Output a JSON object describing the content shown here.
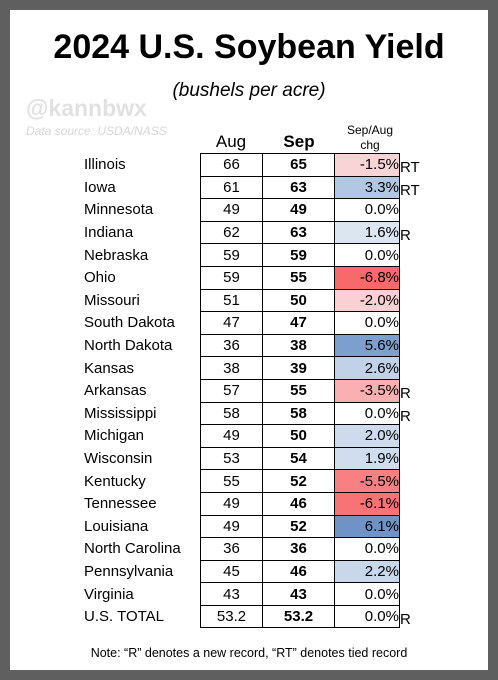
{
  "title": "2024 U.S. Soybean Yield",
  "subtitle": "(bushels per acre)",
  "handle": "@kannbwx",
  "source": "Data source: USDA/NASS",
  "headers": {
    "aug": "Aug",
    "sep": "Sep",
    "chg_line1": "Sep/Aug",
    "chg_line2": "chg"
  },
  "rows": [
    {
      "state": "Illinois",
      "aug": "66",
      "sep": "65",
      "chg": "-1.5%",
      "rec": "RT",
      "color": "#f9d4d6"
    },
    {
      "state": "Iowa",
      "aug": "61",
      "sep": "63",
      "chg": "3.3%",
      "rec": "RT",
      "color": "#b2c7e1"
    },
    {
      "state": "Minnesota",
      "aug": "49",
      "sep": "49",
      "chg": "0.0%",
      "rec": "",
      "color": "#ffffff"
    },
    {
      "state": "Indiana",
      "aug": "62",
      "sep": "63",
      "chg": "1.6%",
      "rec": "R",
      "color": "#dce6f1"
    },
    {
      "state": "Nebraska",
      "aug": "59",
      "sep": "59",
      "chg": "0.0%",
      "rec": "",
      "color": "#ffffff"
    },
    {
      "state": "Ohio",
      "aug": "59",
      "sep": "55",
      "chg": "-6.8%",
      "rec": "",
      "color": "#f8696b"
    },
    {
      "state": "Missouri",
      "aug": "51",
      "sep": "50",
      "chg": "-2.0%",
      "rec": "",
      "color": "#fbd0d2"
    },
    {
      "state": "South Dakota",
      "aug": "47",
      "sep": "47",
      "chg": "0.0%",
      "rec": "",
      "color": "#ffffff"
    },
    {
      "state": "North Dakota",
      "aug": "36",
      "sep": "38",
      "chg": "5.6%",
      "rec": "",
      "color": "#7d9fcd"
    },
    {
      "state": "Kansas",
      "aug": "38",
      "sep": "39",
      "chg": "2.6%",
      "rec": "",
      "color": "#c1d2e8"
    },
    {
      "state": "Arkansas",
      "aug": "57",
      "sep": "55",
      "chg": "-3.5%",
      "rec": "R",
      "color": "#fab0b2"
    },
    {
      "state": "Mississippi",
      "aug": "58",
      "sep": "58",
      "chg": "0.0%",
      "rec": "R",
      "color": "#ffffff"
    },
    {
      "state": "Michigan",
      "aug": "49",
      "sep": "50",
      "chg": "2.0%",
      "rec": "",
      "color": "#cddbec"
    },
    {
      "state": "Wisconsin",
      "aug": "53",
      "sep": "54",
      "chg": "1.9%",
      "rec": "",
      "color": "#d0ddee"
    },
    {
      "state": "Kentucky",
      "aug": "55",
      "sep": "52",
      "chg": "-5.5%",
      "rec": "",
      "color": "#f88082"
    },
    {
      "state": "Tennessee",
      "aug": "49",
      "sep": "46",
      "chg": "-6.1%",
      "rec": "",
      "color": "#f87375"
    },
    {
      "state": "Louisiana",
      "aug": "49",
      "sep": "52",
      "chg": "6.1%",
      "rec": "",
      "color": "#6f93c6"
    },
    {
      "state": "North Carolina",
      "aug": "36",
      "sep": "36",
      "chg": "0.0%",
      "rec": "",
      "color": "#ffffff"
    },
    {
      "state": "Pennsylvania",
      "aug": "45",
      "sep": "46",
      "chg": "2.2%",
      "rec": "",
      "color": "#c8d7ea"
    },
    {
      "state": "Virginia",
      "aug": "43",
      "sep": "43",
      "chg": "0.0%",
      "rec": "",
      "color": "#ffffff"
    },
    {
      "state": "U.S. TOTAL",
      "aug": "53.2",
      "sep": "53.2",
      "chg": "0.0%",
      "rec": "R",
      "color": "#ffffff"
    }
  ],
  "note": "Note: “R” denotes a new record, “RT” denotes tied record"
}
